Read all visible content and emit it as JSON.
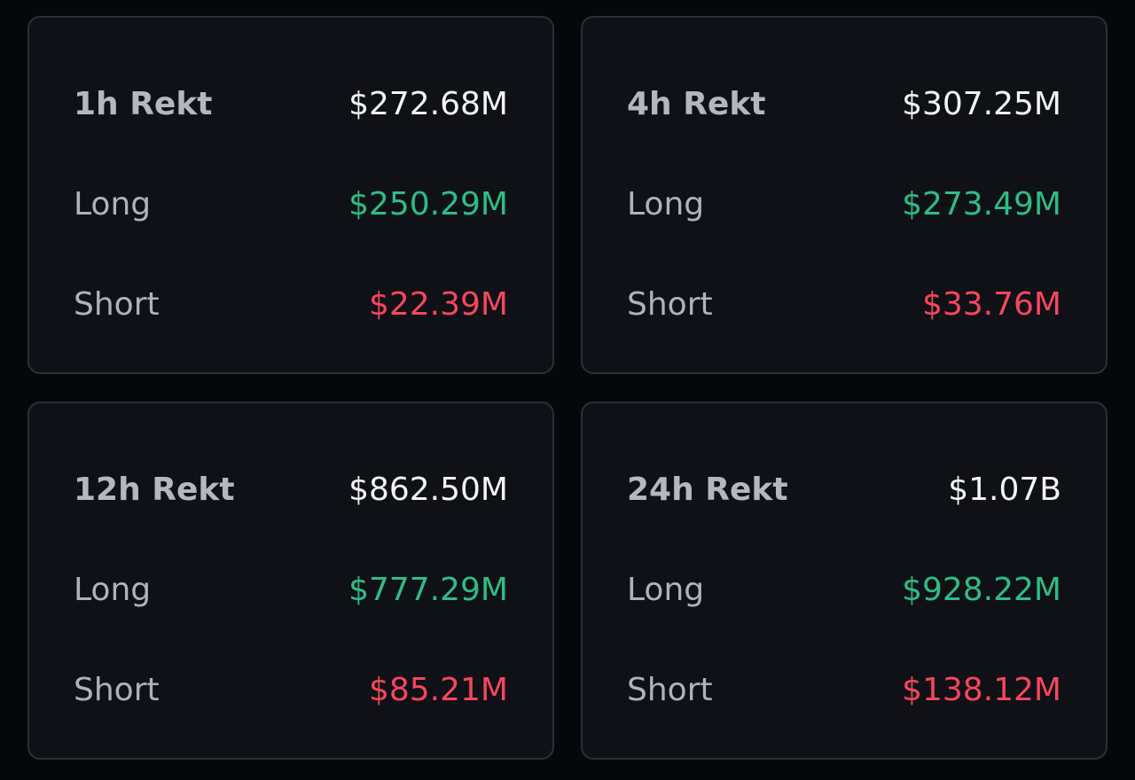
{
  "colors": {
    "background": "#05070b",
    "card": "#0f1117",
    "card_border": "#2b2f38",
    "label": "#aeb2ba",
    "total": "#f3f4f6",
    "long": "#2ebd85",
    "short": "#f6465d"
  },
  "cards": [
    {
      "title": "1h Rekt",
      "total": "$272.68M",
      "long_label": "Long",
      "long": "$250.29M",
      "short_label": "Short",
      "short": "$22.39M"
    },
    {
      "title": "4h Rekt",
      "total": "$307.25M",
      "long_label": "Long",
      "long": "$273.49M",
      "short_label": "Short",
      "short": "$33.76M"
    },
    {
      "title": "12h Rekt",
      "total": "$862.50M",
      "long_label": "Long",
      "long": "$777.29M",
      "short_label": "Short",
      "short": "$85.21M"
    },
    {
      "title": "24h Rekt",
      "total": "$1.07B",
      "long_label": "Long",
      "long": "$928.22M",
      "short_label": "Short",
      "short": "$138.12M"
    }
  ]
}
